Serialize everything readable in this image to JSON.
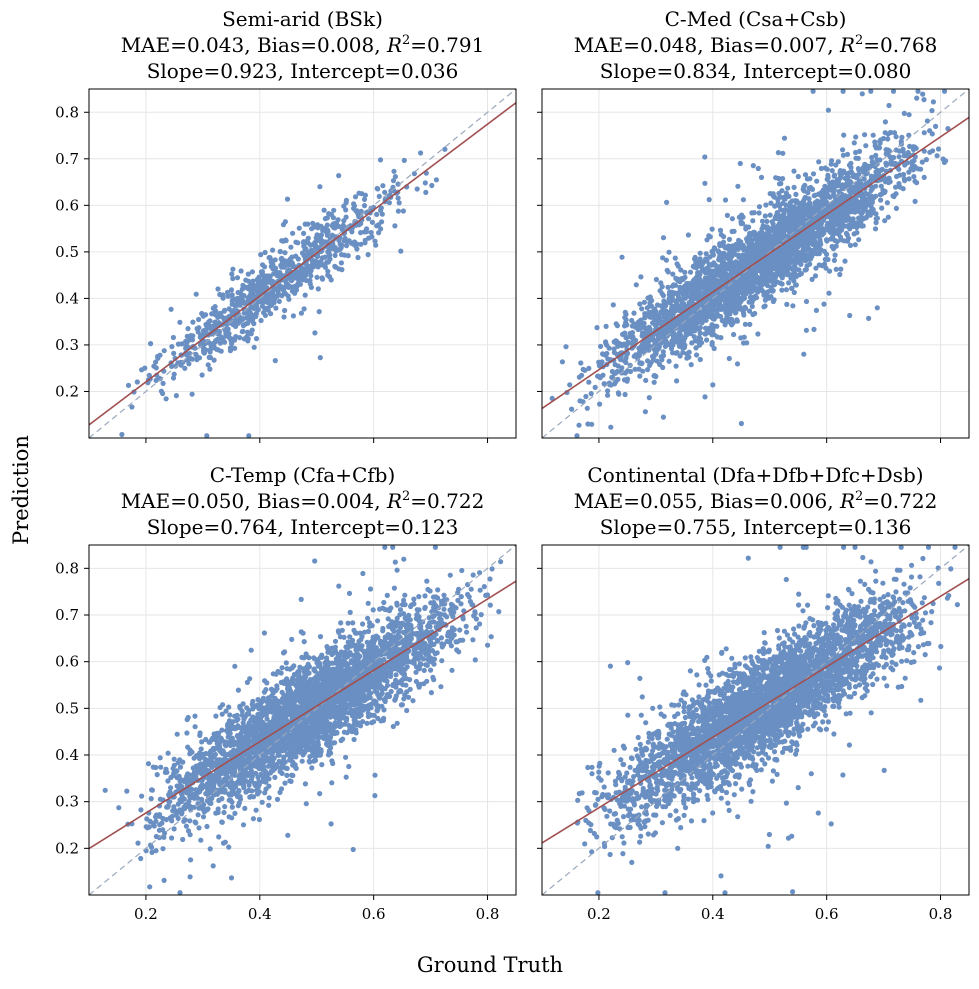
{
  "figure": {
    "xlabel": "Ground Truth",
    "ylabel": "Prediction"
  },
  "colors": {
    "points": "#6a8fc2",
    "fit_line": "#a24f4f",
    "identity_line": "#9aa8bd",
    "grid": "#e6e6e6"
  },
  "chart_data": [
    {
      "type": "scatter",
      "title": "Semi-arid (BSk)",
      "metrics": {
        "mae": "0.043",
        "bias": "0.008",
        "r2": "0.791",
        "slope": "0.923",
        "intercept": "0.036"
      },
      "line1": "Semi-arid (BSk)",
      "line2_pre": "MAE=0.043, Bias=0.008, ",
      "line2_val": "=0.791",
      "line3": "Slope=0.923, Intercept=0.036",
      "fit": {
        "slope": 0.923,
        "intercept": 0.036
      },
      "xlim": [
        0.1,
        0.85
      ],
      "ylim": [
        0.1,
        0.85
      ],
      "xticks": [
        "0.2",
        "0.4",
        "0.6",
        "0.8"
      ],
      "yticks": [
        "0.2",
        "0.3",
        "0.4",
        "0.5",
        "0.6",
        "0.7",
        "0.8"
      ],
      "xtick_labels_shown": false,
      "ytick_labels_shown": true,
      "n_points": 900,
      "noise": 0.035,
      "x_range": [
        0.12,
        0.76
      ]
    },
    {
      "type": "scatter",
      "title": "C-Med (Csa+Csb)",
      "metrics": {
        "mae": "0.048",
        "bias": "0.007",
        "r2": "0.768",
        "slope": "0.834",
        "intercept": "0.080"
      },
      "line1": "C-Med (Csa+Csb)",
      "line2_pre": "MAE=0.048, Bias=0.007, ",
      "line2_val": "=0.768",
      "line3": "Slope=0.834, Intercept=0.080",
      "fit": {
        "slope": 0.834,
        "intercept": 0.08
      },
      "xlim": [
        0.1,
        0.85
      ],
      "ylim": [
        0.1,
        0.85
      ],
      "xticks": [
        "0.2",
        "0.4",
        "0.6",
        "0.8"
      ],
      "yticks": [
        "0.2",
        "0.3",
        "0.4",
        "0.5",
        "0.6",
        "0.7",
        "0.8"
      ],
      "xtick_labels_shown": false,
      "ytick_labels_shown": false,
      "n_points": 3200,
      "noise": 0.045,
      "x_range": [
        0.1,
        0.85
      ]
    },
    {
      "type": "scatter",
      "title": "C-Temp (Cfa+Cfb)",
      "metrics": {
        "mae": "0.050",
        "bias": "0.004",
        "r2": "0.722",
        "slope": "0.764",
        "intercept": "0.123"
      },
      "line1": "C-Temp (Cfa+Cfb)",
      "line2_pre": "MAE=0.050, Bias=0.004, ",
      "line2_val": "=0.722",
      "line3": "Slope=0.764, Intercept=0.123",
      "fit": {
        "slope": 0.764,
        "intercept": 0.123
      },
      "xlim": [
        0.1,
        0.85
      ],
      "ylim": [
        0.1,
        0.85
      ],
      "xticks": [
        "0.2",
        "0.4",
        "0.6",
        "0.8"
      ],
      "yticks": [
        "0.2",
        "0.3",
        "0.4",
        "0.5",
        "0.6",
        "0.7",
        "0.8"
      ],
      "xtick_labels_shown": true,
      "ytick_labels_shown": true,
      "n_points": 3400,
      "noise": 0.05,
      "x_range": [
        0.12,
        0.85
      ]
    },
    {
      "type": "scatter",
      "title": "Continental (Dfa+Dfb+Dfc+Dsb)",
      "metrics": {
        "mae": "0.055",
        "bias": "0.006",
        "r2": "0.722",
        "slope": "0.755",
        "intercept": "0.136"
      },
      "line1": "Continental (Dfa+Dfb+Dfc+Dsb)",
      "line2_pre": "MAE=0.055, Bias=0.006, ",
      "line2_val": "=0.722",
      "line3": "Slope=0.755, Intercept=0.136",
      "fit": {
        "slope": 0.755,
        "intercept": 0.136
      },
      "xlim": [
        0.1,
        0.85
      ],
      "ylim": [
        0.1,
        0.85
      ],
      "xticks": [
        "0.2",
        "0.4",
        "0.6",
        "0.8"
      ],
      "yticks": [
        "0.2",
        "0.3",
        "0.4",
        "0.5",
        "0.6",
        "0.7",
        "0.8"
      ],
      "xtick_labels_shown": true,
      "ytick_labels_shown": false,
      "n_points": 3600,
      "noise": 0.055,
      "x_range": [
        0.12,
        0.85
      ]
    }
  ]
}
